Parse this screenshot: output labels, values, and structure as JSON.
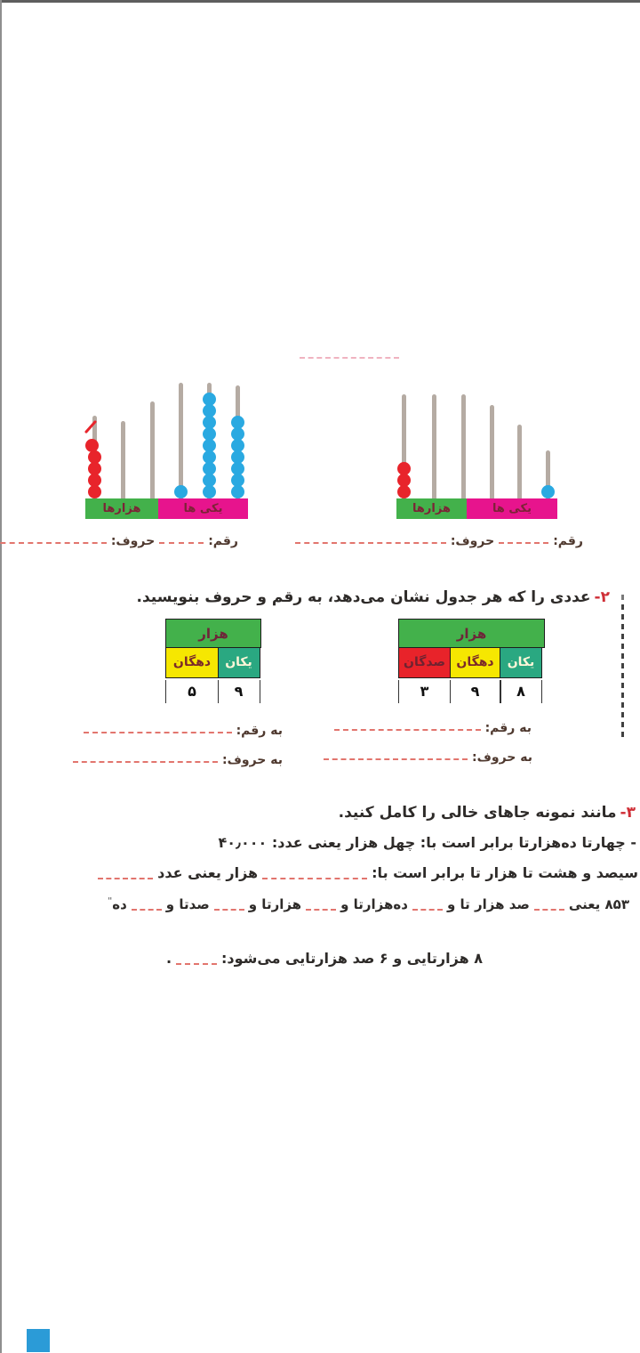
{
  "abacus": {
    "digit_label": "رقم:",
    "letters_label": "حروف:",
    "thousands_label": "هزارها",
    "ones_label": "یکی ها",
    "left_rod_beads": [
      {
        "count": 5,
        "color": "red",
        "marked": true
      },
      {
        "count": 0
      },
      {
        "count": 0
      },
      {
        "count": 1,
        "color": "blue"
      },
      {
        "count": 9,
        "color": "blue"
      },
      {
        "count": 7,
        "color": "blue"
      }
    ],
    "right_rod_beads": [
      {
        "count": 3,
        "color": "red"
      },
      {
        "count": 0
      },
      {
        "count": 0
      },
      {
        "count": 0
      },
      {
        "count": 0
      },
      {
        "count": 1,
        "color": "blue"
      }
    ]
  },
  "question2": {
    "number": "۲-",
    "text": "عددی را که هر جدول نشان می‌دهد، به رقم و حروف بنویسید."
  },
  "tables": {
    "to_digit_label": "به رقم:",
    "to_letters_label": "به حروف:",
    "left": {
      "header": "هزار",
      "columns": [
        {
          "label": "دهگان"
        },
        {
          "label": "یکان"
        }
      ],
      "values": [
        "۵",
        "۹"
      ]
    },
    "right": {
      "header": "هزار",
      "columns": [
        {
          "label": "صدگان"
        },
        {
          "label": "دهگان"
        },
        {
          "label": "یکان"
        }
      ],
      "values": [
        "۳",
        "۹",
        "۸"
      ]
    }
  },
  "question3": {
    "number": "۳-",
    "text": "مانند نمونه جاهای خالی را کامل کنید.",
    "lines": [
      {
        "segments": [
          {
            "t": "- چهارتا ده‌هزارتا برابر است با: چهل هزار یعنی عدد: ۴۰٫۰۰۰"
          }
        ]
      },
      {
        "segments": [
          {
            "t": "سیصد و هشت تا هزار تا برابر است با:"
          },
          {
            "d": 118
          },
          {
            "t": "هزار یعنی عدد"
          },
          {
            "d": 62
          }
        ]
      },
      {
        "segments": [
          {
            "t": "۸۵۳ یعنی"
          },
          {
            "d": 34
          },
          {
            "t": "صد هزار تا و"
          },
          {
            "d": 34
          },
          {
            "t": "ده‌هزارتا و"
          },
          {
            "d": 34
          },
          {
            "t": "هزارتا و"
          },
          {
            "d": 34
          },
          {
            "t": "صدتا و"
          },
          {
            "d": 34
          },
          {
            "t": "ده"
          },
          {
            "m": "\""
          }
        ]
      },
      {
        "segments": [
          {
            "t": "۸ هزارتایی و ۶ صد هزارتایی می‌شود:"
          },
          {
            "d": 46
          },
          {
            "t": "."
          }
        ]
      }
    ]
  },
  "colors": {
    "section_green": "#43b14b",
    "section_magenta": "#e7148d",
    "cell_yellow": "#f6e701",
    "cell_red": "#e8232a",
    "cell_teal": "#2aa881",
    "bead_red": "#e8242b",
    "bead_blue": "#2aa9e1",
    "blank_dash": "#e2756e",
    "question_number_red": "#cf2e36",
    "bar_label": "#7c2336"
  }
}
